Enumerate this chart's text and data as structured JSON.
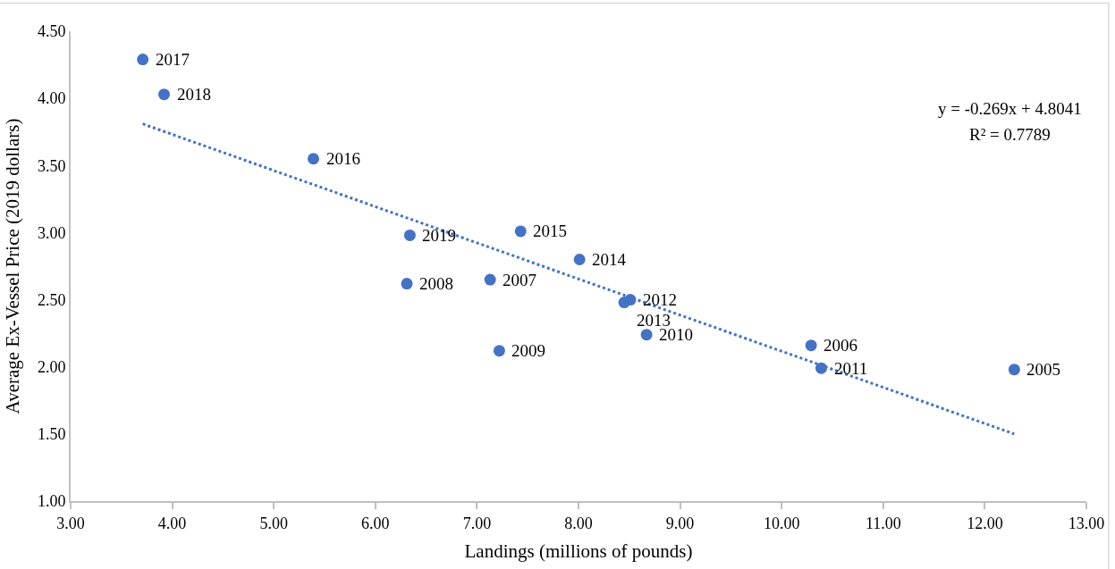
{
  "chart_data": {
    "type": "scatter",
    "xlabel": "Landings (millions of pounds)",
    "ylabel": "Average Ex-Vessel Price (2019 dollars)",
    "xlim": [
      3,
      13
    ],
    "xticks": [
      {
        "value": 3,
        "label": "3.00"
      },
      {
        "value": 4,
        "label": "4.00"
      },
      {
        "value": 5,
        "label": "5.00"
      },
      {
        "value": 6,
        "label": "6.00"
      },
      {
        "value": 7,
        "label": "7.00"
      },
      {
        "value": 8,
        "label": "8.00"
      },
      {
        "value": 9,
        "label": "9.00"
      },
      {
        "value": 10,
        "label": "10.00"
      },
      {
        "value": 11,
        "label": "11.00"
      },
      {
        "value": 12,
        "label": "12.00"
      },
      {
        "value": 13,
        "label": "13.00"
      }
    ],
    "ylim": [
      1,
      4.5
    ],
    "yticks": [
      {
        "value": 1,
        "label": "1.00"
      },
      {
        "value": 1.5,
        "label": "1.50"
      },
      {
        "value": 2,
        "label": "2.00"
      },
      {
        "value": 2.5,
        "label": "2.50"
      },
      {
        "value": 3,
        "label": "3.00"
      },
      {
        "value": 3.5,
        "label": "3.50"
      },
      {
        "value": 4,
        "label": "4.00"
      },
      {
        "value": 4.5,
        "label": "4.50"
      }
    ],
    "marker": "circle",
    "series": [
      {
        "color": "#4472c4",
        "x": [
          12.29,
          10.29,
          7.13,
          6.31,
          7.22,
          8.67,
          10.39,
          8.51,
          8.45,
          8.01,
          7.43,
          5.39,
          3.71,
          3.92,
          6.34
        ],
        "values": [
          1.98,
          2.16,
          2.65,
          2.62,
          2.12,
          2.24,
          1.99,
          2.5,
          2.48,
          2.8,
          3.01,
          3.55,
          4.29,
          4.03,
          2.98
        ]
      },
      {
        "type": "line",
        "color": "#4472c4",
        "line_style": "dotted",
        "marker": "none",
        "x": [
          3.71,
          12.29
        ],
        "values": [
          3.81,
          1.5
        ]
      }
    ],
    "annotations": [
      {
        "text": "2005",
        "x": 12.29,
        "y": 1.98
      },
      {
        "text": "2006",
        "x": 10.29,
        "y": 2.16
      },
      {
        "text": "2007",
        "x": 7.13,
        "y": 2.65
      },
      {
        "text": "2008",
        "x": 6.31,
        "y": 2.62
      },
      {
        "text": "2009",
        "x": 7.22,
        "y": 2.12
      },
      {
        "text": "2010",
        "x": 8.67,
        "y": 2.24
      },
      {
        "text": "2011",
        "x": 10.39,
        "y": 1.99
      },
      {
        "text": "2012",
        "x": 8.51,
        "y": 2.5
      },
      {
        "text": "2013",
        "x": 8.45,
        "y": 2.48
      },
      {
        "text": "2014",
        "x": 8.01,
        "y": 2.8
      },
      {
        "text": "2015",
        "x": 7.43,
        "y": 3.01
      },
      {
        "text": "2016",
        "x": 5.39,
        "y": 3.55
      },
      {
        "text": "2017",
        "x": 3.71,
        "y": 4.29
      },
      {
        "text": "2018",
        "x": 3.92,
        "y": 4.03
      },
      {
        "text": "2019",
        "x": 6.34,
        "y": 2.98
      },
      "y = -0.269x + 4.8041",
      "R² = 0.7789"
    ]
  }
}
